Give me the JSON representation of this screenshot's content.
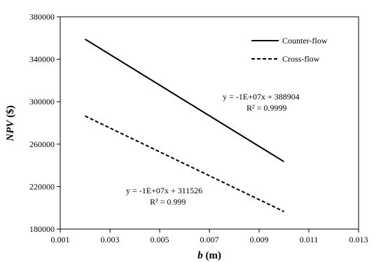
{
  "chart_data": {
    "type": "line",
    "xlabel": {
      "var": "b",
      "unit": " (m)"
    },
    "ylabel": {
      "var": "NPV",
      "unit": " ($)"
    },
    "xlim": [
      0.001,
      0.013
    ],
    "ylim": [
      180000,
      380000
    ],
    "x_ticks": [
      "0.001",
      "0.003",
      "0.005",
      "0.007",
      "0.009",
      "0.011",
      "0.013"
    ],
    "y_ticks": [
      "180000",
      "220000",
      "260000",
      "300000",
      "340000",
      "380000"
    ],
    "grid": false,
    "legend_position": "top-right",
    "series": [
      {
        "name": "Counter-flow",
        "style": "solid",
        "color": "#000000",
        "x": [
          0.002,
          0.01
        ],
        "y": [
          358900,
          243500
        ]
      },
      {
        "name": "Cross-flow",
        "style": "dashed",
        "color": "#000000",
        "x": [
          0.002,
          0.01
        ],
        "y": [
          286500,
          196500
        ]
      }
    ],
    "annotations": [
      {
        "series": "Counter-flow",
        "equation": "y = -1E+07x + 388904",
        "r2": "R² = 0.9999"
      },
      {
        "series": "Cross-flow",
        "equation": "y = -1E+07x + 311526",
        "r2": "R² = 0.999"
      }
    ]
  }
}
